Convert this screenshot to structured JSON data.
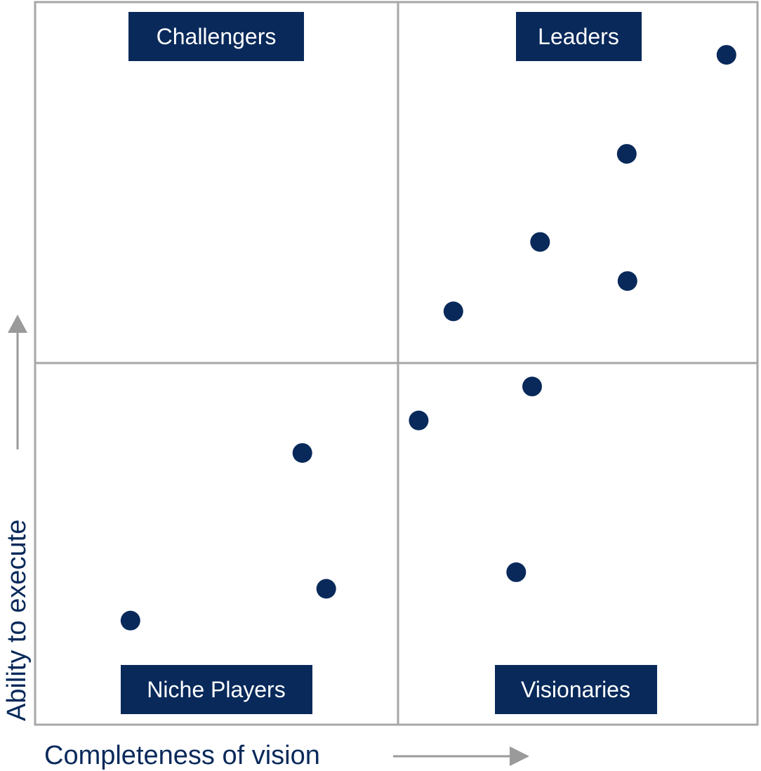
{
  "colors": {
    "navy": "#08295a",
    "frame": "#a7a7a7",
    "arrow": "#9a9a9a",
    "background": "#ffffff"
  },
  "quadrants": {
    "top_left": "Challengers",
    "top_right": "Leaders",
    "bottom_left": "Niche Players",
    "bottom_right": "Visionaries"
  },
  "axes": {
    "x_title": "Completeness of vision",
    "y_title": "Ability to execute"
  },
  "chart_data": {
    "type": "scatter",
    "title": "",
    "xlabel": "Completeness of vision",
    "ylabel": "Ability to execute",
    "xlim": [
      0,
      100
    ],
    "ylim": [
      0,
      100
    ],
    "grid": false,
    "quadrant_split": {
      "x": 50,
      "y": 50
    },
    "points": [
      {
        "x": 95.7,
        "y": 92.7
      },
      {
        "x": 81.9,
        "y": 79.0
      },
      {
        "x": 69.9,
        "y": 66.8
      },
      {
        "x": 82.0,
        "y": 61.4
      },
      {
        "x": 57.9,
        "y": 57.2
      },
      {
        "x": 68.8,
        "y": 46.8
      },
      {
        "x": 53.1,
        "y": 42.1
      },
      {
        "x": 37.0,
        "y": 37.6
      },
      {
        "x": 66.6,
        "y": 21.1
      },
      {
        "x": 40.3,
        "y": 18.8
      },
      {
        "x": 13.2,
        "y": 14.4
      }
    ]
  }
}
